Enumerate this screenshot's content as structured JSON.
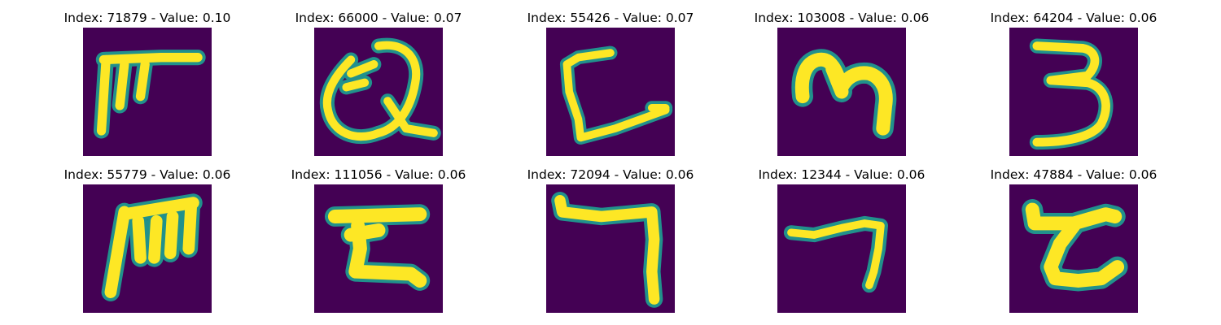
{
  "figure": {
    "background": "#ffffff",
    "colormap": {
      "low": "#440154",
      "mid": "#21918c",
      "high": "#fde725",
      "name": "viridis"
    }
  },
  "panels": [
    {
      "title": "Index: 71879 - Value: 0.10",
      "glyph": "handwritten-character-T-with-stems"
    },
    {
      "title": "Index: 66000 - Value: 0.07",
      "glyph": "handwritten-character-Q-loop"
    },
    {
      "title": "Index: 55426 - Value: 0.07",
      "glyph": "handwritten-character-bracket-C"
    },
    {
      "title": "Index: 103008 - Value: 0.06",
      "glyph": "handwritten-character-m"
    },
    {
      "title": "Index: 64204 - Value: 0.06",
      "glyph": "handwritten-character-3"
    },
    {
      "title": "Index: 55779 - Value: 0.06",
      "glyph": "handwritten-character-M-comb"
    },
    {
      "title": "Index: 111056 - Value: 0.06",
      "glyph": "handwritten-character-Z-box"
    },
    {
      "title": "Index: 72094 - Value: 0.06",
      "glyph": "handwritten-character-7-hook"
    },
    {
      "title": "Index: 12344 - Value: 0.06",
      "glyph": "handwritten-character-7-thin"
    },
    {
      "title": "Index: 47884 - Value: 0.06",
      "glyph": "handwritten-character-Z-curly"
    }
  ]
}
